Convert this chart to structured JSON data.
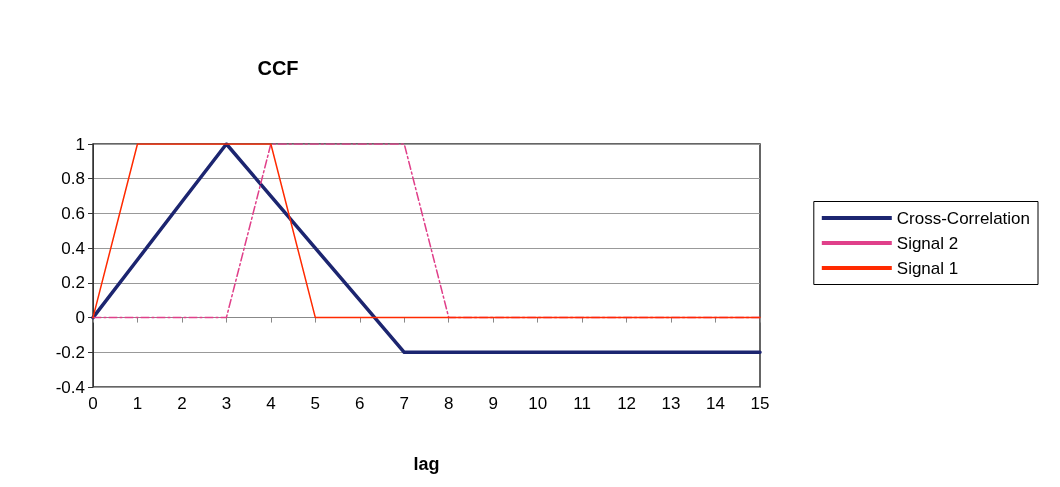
{
  "chart_data": {
    "type": "line",
    "title": "CCF",
    "xlabel": "lag",
    "x": [
      0,
      1,
      2,
      3,
      4,
      5,
      6,
      7,
      8,
      9,
      10,
      11,
      12,
      13,
      14,
      15
    ],
    "xlim": [
      0,
      15
    ],
    "xticks": [
      0,
      1,
      2,
      3,
      4,
      5,
      6,
      7,
      8,
      9,
      10,
      11,
      12,
      13,
      14,
      15
    ],
    "ylim": [
      -0.4,
      1
    ],
    "yticks": [
      -0.4,
      -0.2,
      0,
      0.2,
      0.4,
      0.6,
      0.8,
      1
    ],
    "grid": "y",
    "legend": "right",
    "marker": "none",
    "series": [
      {
        "name": "Cross-Correlation",
        "color": "#1c2570",
        "line_style": "solid",
        "values": [
          0,
          0.333,
          0.667,
          1,
          0.7,
          0.4,
          0.1,
          -0.2,
          -0.2,
          -0.2,
          -0.2,
          -0.2,
          -0.2,
          -0.2,
          -0.2,
          -0.2
        ]
      },
      {
        "name": "Signal 2",
        "color": "#e0408a",
        "line_style": "dashed",
        "values": [
          0,
          0,
          0,
          0,
          1,
          1,
          1,
          1,
          0,
          0,
          0,
          0,
          0,
          0,
          0,
          0
        ]
      },
      {
        "name": "Signal 1",
        "color": "#ff2a00",
        "line_style": "solid",
        "values": [
          0,
          1,
          1,
          1,
          1,
          0,
          0,
          0,
          0,
          0,
          0,
          0,
          0,
          0,
          0,
          0
        ]
      }
    ]
  }
}
